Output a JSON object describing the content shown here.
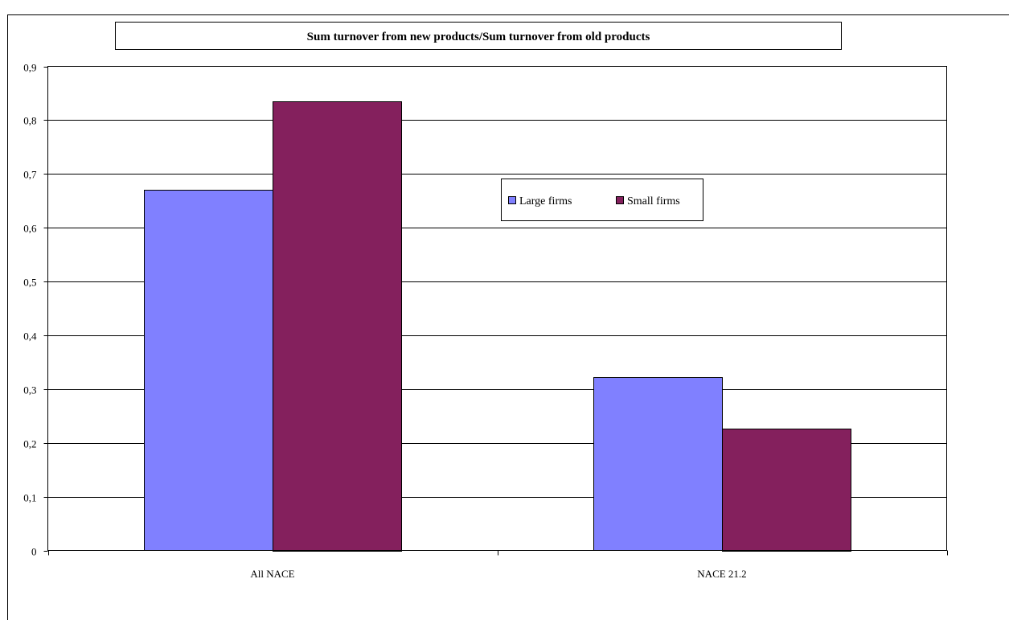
{
  "chart_data": {
    "type": "bar",
    "title": "Sum turnover from new products/Sum turnover from old products",
    "categories": [
      "All NACE",
      "NACE 21.2"
    ],
    "series": [
      {
        "name": "Large firms",
        "values": [
          0.67,
          0.322
        ],
        "color": "#8080ff"
      },
      {
        "name": "Small firms",
        "values": [
          0.835,
          0.227
        ],
        "color": "#84205d"
      }
    ],
    "ylim": [
      0,
      0.9
    ],
    "yticks": [
      "0",
      "0,1",
      "0,2",
      "0,3",
      "0,4",
      "0,5",
      "0,6",
      "0,7",
      "0,8",
      "0,9"
    ],
    "grid": true,
    "legend_position": "center-right"
  }
}
